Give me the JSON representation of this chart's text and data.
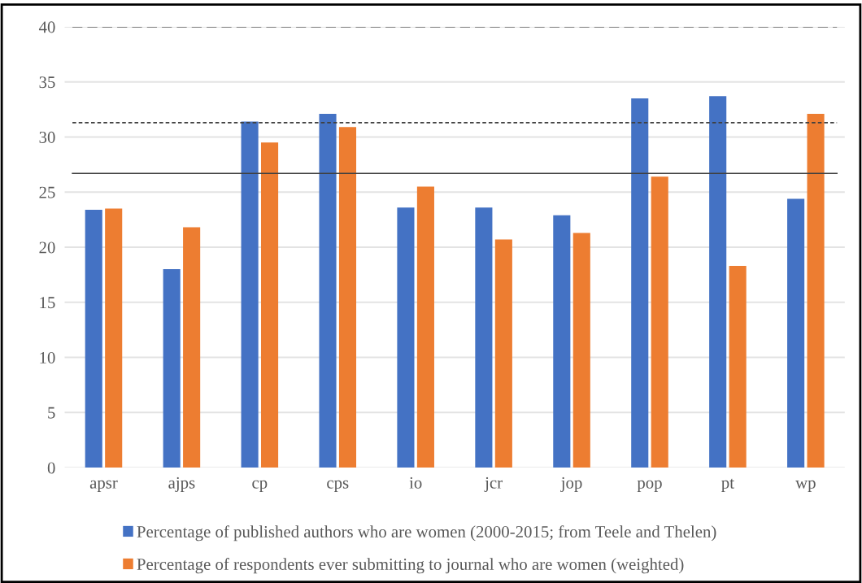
{
  "chart_data": {
    "type": "bar",
    "categories": [
      "apsr",
      "ajps",
      "cp",
      "cps",
      "io",
      "jcr",
      "jop",
      "pop",
      "pt",
      "wp"
    ],
    "series": [
      {
        "name": "Percentage of published authors who are women (2000-2015; from Teele and Thelen)",
        "color": "#4472c4",
        "values": [
          23.4,
          18.0,
          31.4,
          32.1,
          23.6,
          23.6,
          22.9,
          33.5,
          33.7,
          24.4
        ]
      },
      {
        "name": "Percentage of respondents ever submitting to journal who are women (weighted)",
        "color": "#ed7d31",
        "values": [
          23.5,
          21.8,
          29.5,
          30.9,
          25.5,
          20.7,
          21.3,
          26.4,
          18.3,
          32.1
        ]
      }
    ],
    "ylim": [
      0,
      40
    ],
    "yticks": [
      0,
      5,
      10,
      15,
      20,
      25,
      30,
      35,
      40
    ],
    "ref_lines": [
      {
        "axis": "y",
        "value": 40,
        "color": "#595959",
        "line_style": "dashed"
      },
      {
        "axis": "y",
        "value": 31.3,
        "color": "#404040",
        "line_style": "dotted"
      },
      {
        "axis": "y",
        "value": 26.7,
        "color": "#404040",
        "line_style": "solid"
      }
    ],
    "grid": "y",
    "legend": "bottom"
  }
}
